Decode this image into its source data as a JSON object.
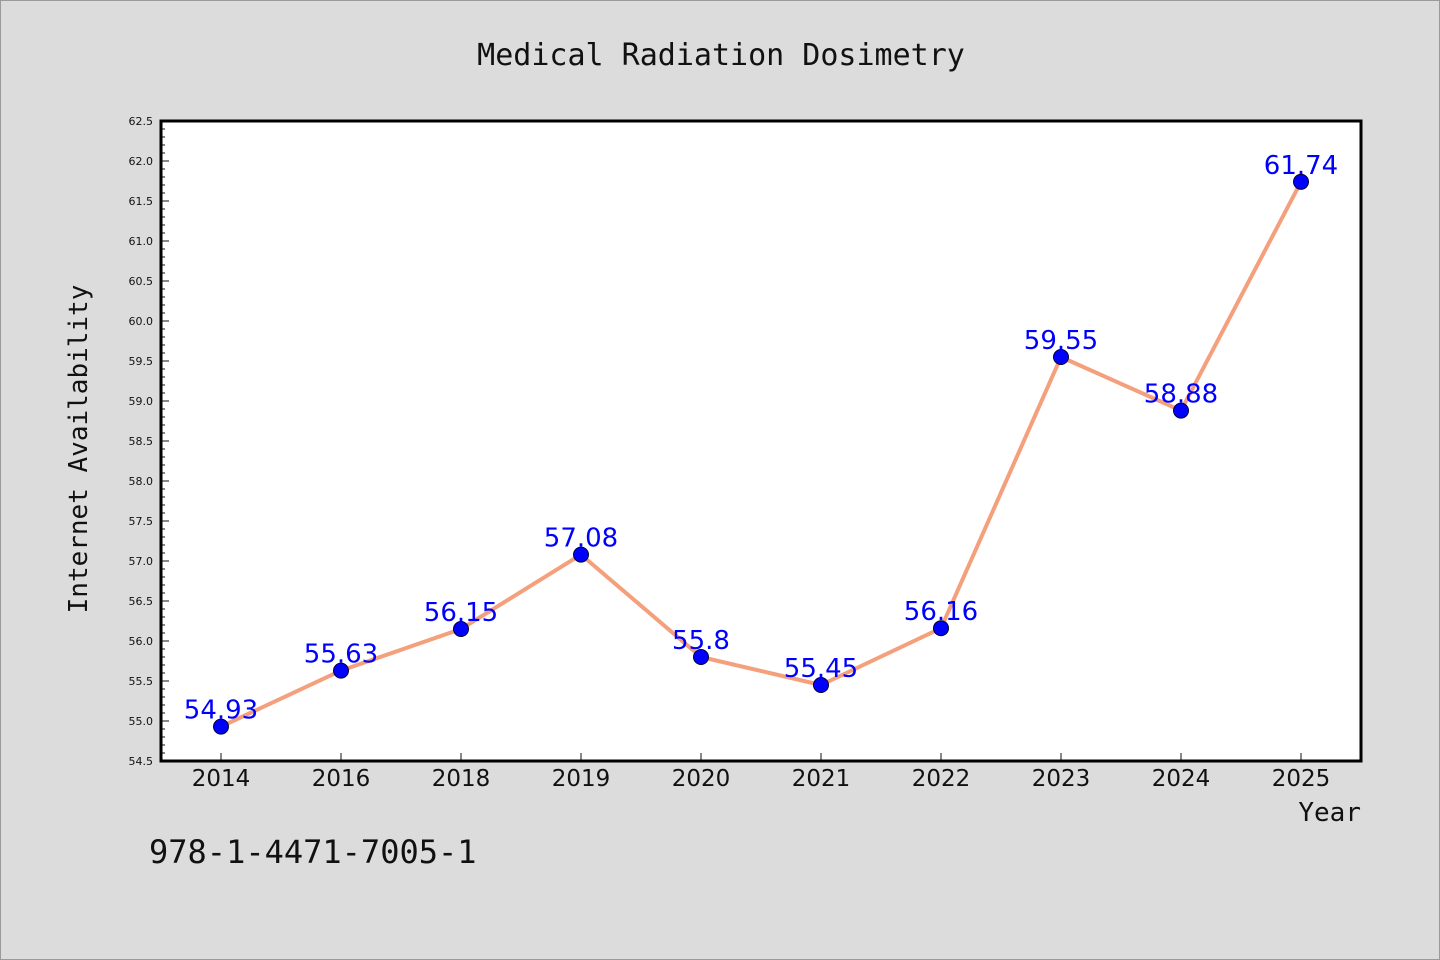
{
  "footer_code": "978-1-4471-7005-1",
  "colors": {
    "background": "#dcdcdc",
    "plot_background": "#ffffff",
    "line": "#f4a07c",
    "marker": "#0000ff",
    "label": "#0000ff",
    "text": "#111111"
  },
  "chart_data": {
    "type": "line",
    "title": "Medical Radiation Dosimetry",
    "xlabel": "Year",
    "ylabel": "Internet Availability",
    "categories": [
      "2014",
      "2016",
      "2018",
      "2019",
      "2020",
      "2021",
      "2022",
      "2023",
      "2024",
      "2025"
    ],
    "values": [
      54.93,
      55.63,
      56.15,
      57.08,
      55.8,
      55.45,
      56.16,
      59.55,
      58.88,
      61.74
    ],
    "data_labels": [
      "54.93",
      "55.63",
      "56.15",
      "57.08",
      "55.8",
      "55.45",
      "56.16",
      "59.55",
      "58.88",
      "61.74"
    ],
    "ylim": [
      54.5,
      62.5
    ],
    "yticks": [
      "54.5",
      "55.0",
      "55.5",
      "56.0",
      "56.5",
      "57.0",
      "57.5",
      "58.0",
      "58.5",
      "59.0",
      "59.5",
      "60.0",
      "60.5",
      "61.0",
      "61.5",
      "62.0",
      "62.5"
    ],
    "grid": false,
    "legend": "none"
  }
}
